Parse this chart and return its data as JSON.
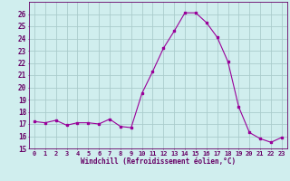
{
  "x": [
    0,
    1,
    2,
    3,
    4,
    5,
    6,
    7,
    8,
    9,
    10,
    11,
    12,
    13,
    14,
    15,
    16,
    17,
    18,
    19,
    20,
    21,
    22,
    23
  ],
  "y": [
    17.2,
    17.1,
    17.3,
    16.9,
    17.1,
    17.1,
    17.0,
    17.4,
    16.8,
    16.7,
    19.5,
    21.3,
    23.2,
    24.6,
    26.1,
    26.1,
    25.3,
    24.1,
    22.1,
    18.4,
    16.3,
    15.8,
    15.5,
    15.9
  ],
  "line_color": "#990099",
  "marker_color": "#990099",
  "bg_color": "#d0eeee",
  "grid_color": "#aacccc",
  "xlabel": "Windchill (Refroidissement éolien,°C)",
  "ylim": [
    15,
    27
  ],
  "xlim": [
    -0.5,
    23.5
  ],
  "yticks": [
    15,
    16,
    17,
    18,
    19,
    20,
    21,
    22,
    23,
    24,
    25,
    26
  ],
  "xticks": [
    0,
    1,
    2,
    3,
    4,
    5,
    6,
    7,
    8,
    9,
    10,
    11,
    12,
    13,
    14,
    15,
    16,
    17,
    18,
    19,
    20,
    21,
    22,
    23
  ],
  "axis_color": "#660066",
  "xlabel_color": "#660066",
  "tick_color": "#660066"
}
